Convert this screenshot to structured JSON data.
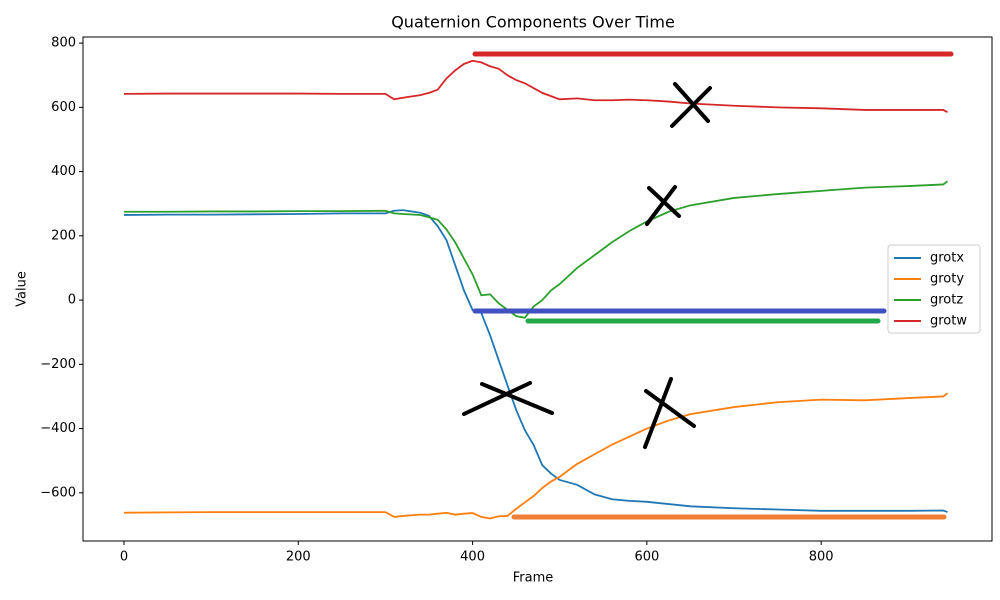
{
  "chart_data": {
    "type": "line",
    "title": "Quaternion Components Over Time",
    "x_label": "Frame",
    "y_label": "Value",
    "x": [
      0,
      50,
      100,
      150,
      200,
      250,
      300,
      310,
      320,
      340,
      350,
      360,
      370,
      380,
      390,
      400,
      410,
      420,
      430,
      440,
      450,
      460,
      470,
      480,
      490,
      500,
      520,
      540,
      560,
      580,
      600,
      625,
      650,
      700,
      750,
      800,
      850,
      900,
      940,
      945
    ],
    "series": [
      {
        "name": "grotx",
        "color": "#1f77b4",
        "values": [
          265,
          266,
          266,
          267,
          268,
          270,
          270,
          278,
          280,
          272,
          262,
          230,
          187,
          109,
          31,
          -31,
          -40,
          -109,
          -187,
          -265,
          -342,
          -405,
          -451,
          -514,
          -540,
          -560,
          -575,
          -605,
          -620,
          -625,
          -628,
          -635,
          -642,
          -648,
          -652,
          -656,
          -656,
          -656,
          -655,
          -660
        ]
      },
      {
        "name": "groty",
        "color": "#ff7f0e",
        "values": [
          -662,
          -661,
          -660,
          -660,
          -660,
          -660,
          -660,
          -675,
          -672,
          -668,
          -668,
          -665,
          -662,
          -668,
          -665,
          -663,
          -675,
          -680,
          -673,
          -672,
          -650,
          -630,
          -610,
          -585,
          -565,
          -550,
          -510,
          -480,
          -450,
          -425,
          -400,
          -375,
          -355,
          -333,
          -318,
          -310,
          -312,
          -305,
          -300,
          -290
        ]
      },
      {
        "name": "grotz",
        "color": "#2ca02c",
        "values": [
          275,
          275,
          276,
          276,
          277,
          277,
          278,
          270,
          268,
          265,
          258,
          250,
          220,
          180,
          130,
          80,
          15,
          18,
          -10,
          -30,
          -50,
          -55,
          -20,
          0,
          30,
          50,
          100,
          140,
          180,
          215,
          245,
          275,
          295,
          318,
          330,
          340,
          350,
          355,
          360,
          370
        ]
      },
      {
        "name": "grotw",
        "color": "#d62728",
        "values": [
          642,
          643,
          643,
          643,
          643,
          642,
          642,
          625,
          630,
          638,
          645,
          655,
          690,
          715,
          735,
          745,
          740,
          728,
          720,
          700,
          685,
          675,
          660,
          645,
          635,
          625,
          628,
          622,
          622,
          624,
          622,
          618,
          612,
          605,
          600,
          597,
          592,
          592,
          592,
          585
        ]
      }
    ],
    "xlim": [
      -47,
      996
    ],
    "ylim": [
      -750,
      819
    ],
    "xticks": [
      0,
      200,
      400,
      600,
      800
    ],
    "yticks": [
      {
        "value": -600,
        "label": "−600"
      },
      {
        "value": -400,
        "label": "−400"
      },
      {
        "value": -200,
        "label": "−200"
      },
      0,
      200,
      400,
      600,
      800
    ],
    "legend": "center right"
  }
}
